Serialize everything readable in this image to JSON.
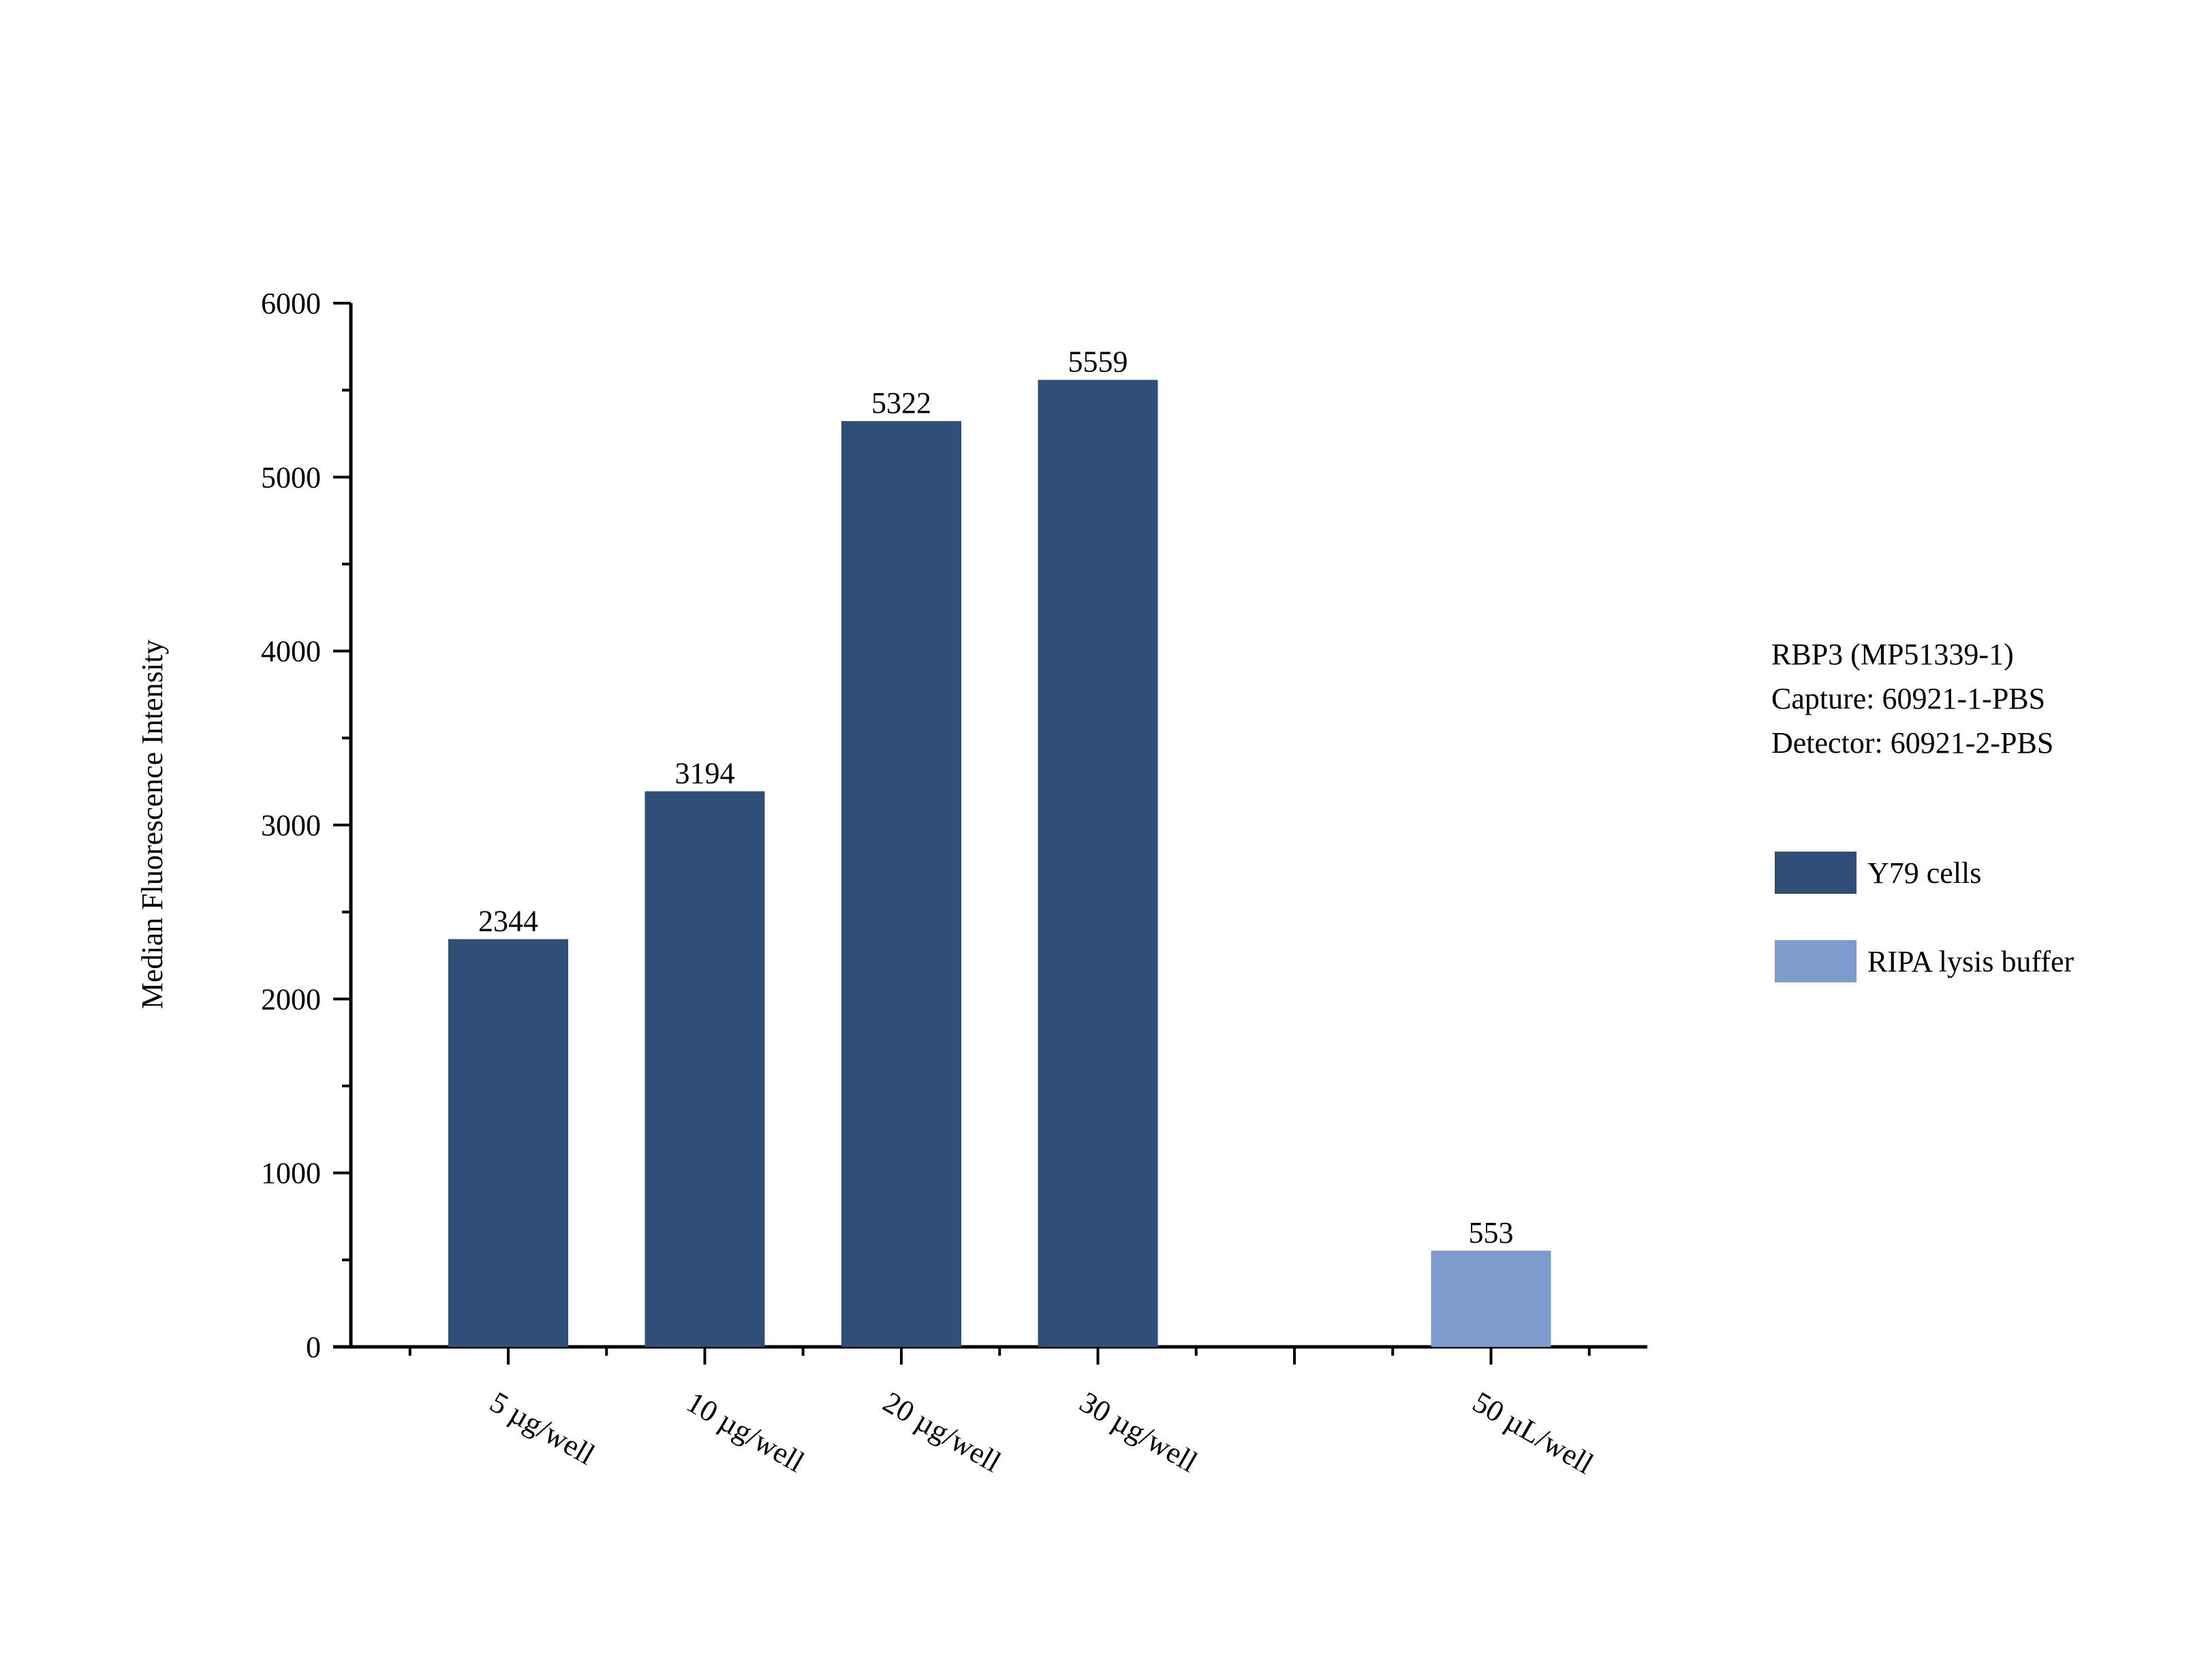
{
  "chart_data": {
    "type": "bar",
    "categories": [
      "5 µg/well",
      "10 µg/well",
      "20 µg/well",
      "30 µg/well",
      "",
      "50 µL/well"
    ],
    "series": [
      {
        "name": "Y79 cells",
        "color": "#304f78",
        "values": [
          2344,
          3194,
          5322,
          5559,
          null,
          null
        ]
      },
      {
        "name": "RIPA lysis buffer",
        "color": "#7b9ccc",
        "values": [
          null,
          null,
          null,
          null,
          null,
          553
        ]
      }
    ],
    "data_labels": [
      "2344",
      "3194",
      "5322",
      "5559",
      "",
      "553"
    ],
    "title": "",
    "xlabel": "",
    "ylabel": "Median Fluorescence Intensity",
    "ylim": [
      0,
      6000
    ],
    "yticks": [
      0,
      1000,
      2000,
      3000,
      4000,
      5000,
      6000
    ],
    "ytick_labels": [
      "0",
      "1000",
      "2000",
      "3000",
      "4000",
      "5000",
      "6000"
    ],
    "grid": false,
    "legend_position": "right"
  },
  "info": {
    "lines": [
      "RBP3 (MP51339-1)",
      "Capture: 60921-1-PBS",
      "Detector: 60921-2-PBS"
    ]
  }
}
